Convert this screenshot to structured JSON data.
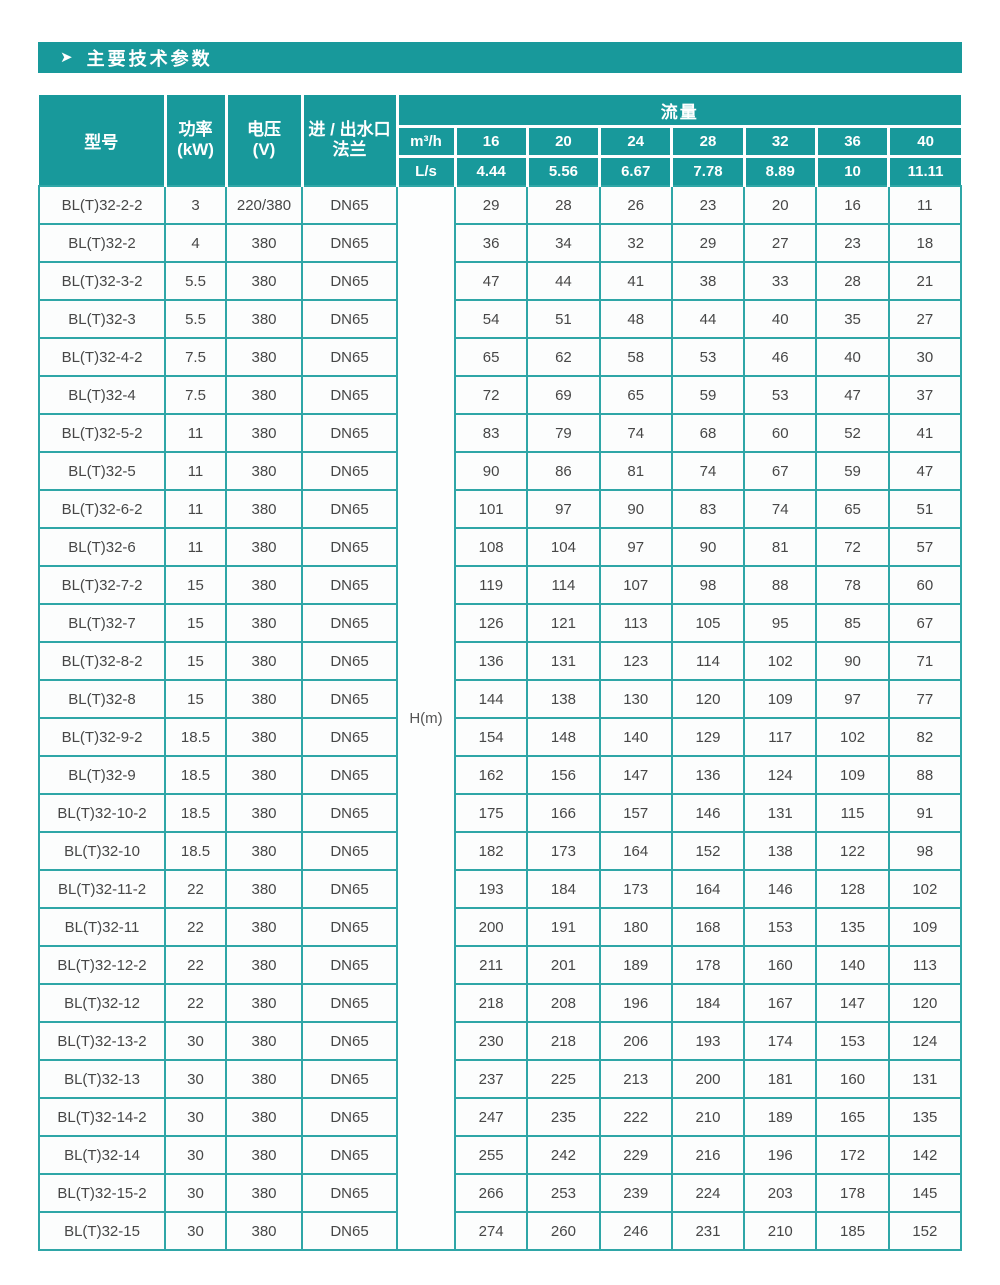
{
  "page": {
    "title": "主要技术参数",
    "title_arrow": "➤"
  },
  "colors": {
    "teal_header": "#18999b",
    "teal_border": "#2fa6a7",
    "text_dark": "#474747",
    "page_background": "#ffffff"
  },
  "table": {
    "header": {
      "model": "型号",
      "power": "功率\n(kW)",
      "voltage": "电压\n(V)",
      "flange": "进 / 出水口\n法兰",
      "flow": "流量",
      "unit_m3h": "m³/h",
      "unit_ls": "L/s",
      "head_unit": "H(m)"
    },
    "flow_m3h": [
      "16",
      "20",
      "24",
      "28",
      "32",
      "36",
      "40"
    ],
    "flow_ls": [
      "4.44",
      "5.56",
      "6.67",
      "7.78",
      "8.89",
      "10",
      "11.11"
    ],
    "rows": [
      {
        "model": "BL(T)32-2-2",
        "power": "3",
        "voltage": "220/380",
        "flange": "DN65",
        "values": [
          "29",
          "28",
          "26",
          "23",
          "20",
          "16",
          "11"
        ]
      },
      {
        "model": "BL(T)32-2",
        "power": "4",
        "voltage": "380",
        "flange": "DN65",
        "values": [
          "36",
          "34",
          "32",
          "29",
          "27",
          "23",
          "18"
        ]
      },
      {
        "model": "BL(T)32-3-2",
        "power": "5.5",
        "voltage": "380",
        "flange": "DN65",
        "values": [
          "47",
          "44",
          "41",
          "38",
          "33",
          "28",
          "21"
        ]
      },
      {
        "model": "BL(T)32-3",
        "power": "5.5",
        "voltage": "380",
        "flange": "DN65",
        "values": [
          "54",
          "51",
          "48",
          "44",
          "40",
          "35",
          "27"
        ]
      },
      {
        "model": "BL(T)32-4-2",
        "power": "7.5",
        "voltage": "380",
        "flange": "DN65",
        "values": [
          "65",
          "62",
          "58",
          "53",
          "46",
          "40",
          "30"
        ]
      },
      {
        "model": "BL(T)32-4",
        "power": "7.5",
        "voltage": "380",
        "flange": "DN65",
        "values": [
          "72",
          "69",
          "65",
          "59",
          "53",
          "47",
          "37"
        ]
      },
      {
        "model": "BL(T)32-5-2",
        "power": "11",
        "voltage": "380",
        "flange": "DN65",
        "values": [
          "83",
          "79",
          "74",
          "68",
          "60",
          "52",
          "41"
        ]
      },
      {
        "model": "BL(T)32-5",
        "power": "11",
        "voltage": "380",
        "flange": "DN65",
        "values": [
          "90",
          "86",
          "81",
          "74",
          "67",
          "59",
          "47"
        ]
      },
      {
        "model": "BL(T)32-6-2",
        "power": "11",
        "voltage": "380",
        "flange": "DN65",
        "values": [
          "101",
          "97",
          "90",
          "83",
          "74",
          "65",
          "51"
        ]
      },
      {
        "model": "BL(T)32-6",
        "power": "11",
        "voltage": "380",
        "flange": "DN65",
        "values": [
          "108",
          "104",
          "97",
          "90",
          "81",
          "72",
          "57"
        ]
      },
      {
        "model": "BL(T)32-7-2",
        "power": "15",
        "voltage": "380",
        "flange": "DN65",
        "values": [
          "119",
          "114",
          "107",
          "98",
          "88",
          "78",
          "60"
        ]
      },
      {
        "model": "BL(T)32-7",
        "power": "15",
        "voltage": "380",
        "flange": "DN65",
        "values": [
          "126",
          "121",
          "113",
          "105",
          "95",
          "85",
          "67"
        ]
      },
      {
        "model": "BL(T)32-8-2",
        "power": "15",
        "voltage": "380",
        "flange": "DN65",
        "values": [
          "136",
          "131",
          "123",
          "114",
          "102",
          "90",
          "71"
        ]
      },
      {
        "model": "BL(T)32-8",
        "power": "15",
        "voltage": "380",
        "flange": "DN65",
        "values": [
          "144",
          "138",
          "130",
          "120",
          "109",
          "97",
          "77"
        ]
      },
      {
        "model": "BL(T)32-9-2",
        "power": "18.5",
        "voltage": "380",
        "flange": "DN65",
        "values": [
          "154",
          "148",
          "140",
          "129",
          "117",
          "102",
          "82"
        ]
      },
      {
        "model": "BL(T)32-9",
        "power": "18.5",
        "voltage": "380",
        "flange": "DN65",
        "values": [
          "162",
          "156",
          "147",
          "136",
          "124",
          "109",
          "88"
        ]
      },
      {
        "model": "BL(T)32-10-2",
        "power": "18.5",
        "voltage": "380",
        "flange": "DN65",
        "values": [
          "175",
          "166",
          "157",
          "146",
          "131",
          "115",
          "91"
        ]
      },
      {
        "model": "BL(T)32-10",
        "power": "18.5",
        "voltage": "380",
        "flange": "DN65",
        "values": [
          "182",
          "173",
          "164",
          "152",
          "138",
          "122",
          "98"
        ]
      },
      {
        "model": "BL(T)32-11-2",
        "power": "22",
        "voltage": "380",
        "flange": "DN65",
        "values": [
          "193",
          "184",
          "173",
          "164",
          "146",
          "128",
          "102"
        ]
      },
      {
        "model": "BL(T)32-11",
        "power": "22",
        "voltage": "380",
        "flange": "DN65",
        "values": [
          "200",
          "191",
          "180",
          "168",
          "153",
          "135",
          "109"
        ]
      },
      {
        "model": "BL(T)32-12-2",
        "power": "22",
        "voltage": "380",
        "flange": "DN65",
        "values": [
          "211",
          "201",
          "189",
          "178",
          "160",
          "140",
          "113"
        ]
      },
      {
        "model": "BL(T)32-12",
        "power": "22",
        "voltage": "380",
        "flange": "DN65",
        "values": [
          "218",
          "208",
          "196",
          "184",
          "167",
          "147",
          "120"
        ]
      },
      {
        "model": "BL(T)32-13-2",
        "power": "30",
        "voltage": "380",
        "flange": "DN65",
        "values": [
          "230",
          "218",
          "206",
          "193",
          "174",
          "153",
          "124"
        ]
      },
      {
        "model": "BL(T)32-13",
        "power": "30",
        "voltage": "380",
        "flange": "DN65",
        "values": [
          "237",
          "225",
          "213",
          "200",
          "181",
          "160",
          "131"
        ]
      },
      {
        "model": "BL(T)32-14-2",
        "power": "30",
        "voltage": "380",
        "flange": "DN65",
        "values": [
          "247",
          "235",
          "222",
          "210",
          "189",
          "165",
          "135"
        ]
      },
      {
        "model": "BL(T)32-14",
        "power": "30",
        "voltage": "380",
        "flange": "DN65",
        "values": [
          "255",
          "242",
          "229",
          "216",
          "196",
          "172",
          "142"
        ]
      },
      {
        "model": "BL(T)32-15-2",
        "power": "30",
        "voltage": "380",
        "flange": "DN65",
        "values": [
          "266",
          "253",
          "239",
          "224",
          "203",
          "178",
          "145"
        ]
      },
      {
        "model": "BL(T)32-15",
        "power": "30",
        "voltage": "380",
        "flange": "DN65",
        "values": [
          "274",
          "260",
          "246",
          "231",
          "210",
          "185",
          "152"
        ]
      }
    ]
  }
}
